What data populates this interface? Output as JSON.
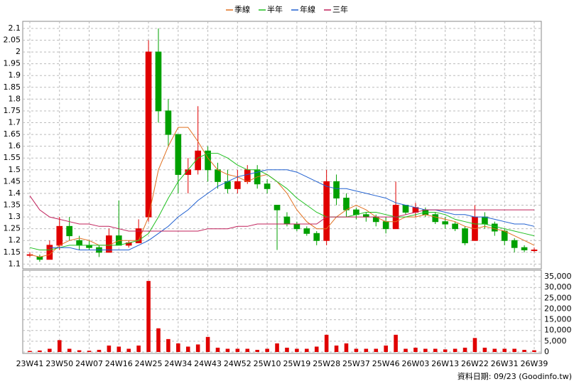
{
  "chart_data": {
    "type": "candlestick",
    "categories": [
      "23W41",
      null,
      null,
      "23W50",
      null,
      null,
      "24W07",
      null,
      null,
      "24W16",
      null,
      null,
      "24W25",
      null,
      null,
      "24W34",
      null,
      null,
      "24W43",
      null,
      null,
      "24W52",
      null,
      null,
      "25W10",
      null,
      null,
      "25W19",
      null,
      null,
      "25W28",
      null,
      null,
      "25W37",
      null,
      null,
      "25W46",
      null,
      null,
      "26W03",
      null,
      null,
      "26W13",
      null,
      null,
      "26W22",
      null,
      null,
      "26W31",
      null,
      null,
      "26W39"
    ],
    "open": [
      1.14,
      1.13,
      1.12,
      1.18,
      1.26,
      1.2,
      1.18,
      1.17,
      1.15,
      1.22,
      1.18,
      1.19,
      1.3,
      2.0,
      1.75,
      1.65,
      1.48,
      1.5,
      1.58,
      1.5,
      1.45,
      1.42,
      1.45,
      1.5,
      1.44,
      1.35,
      1.3,
      1.27,
      1.25,
      1.23,
      1.2,
      1.45,
      1.38,
      1.33,
      1.31,
      1.3,
      1.28,
      1.25,
      1.35,
      1.32,
      1.33,
      1.31,
      1.28,
      1.27,
      1.25,
      1.2,
      1.3,
      1.27,
      1.24,
      1.2,
      1.17,
      1.16
    ],
    "high": [
      1.15,
      1.14,
      1.2,
      1.3,
      1.3,
      1.22,
      1.2,
      1.18,
      1.25,
      1.37,
      1.2,
      1.29,
      2.05,
      2.1,
      1.8,
      1.65,
      1.55,
      1.77,
      1.6,
      1.53,
      1.5,
      1.5,
      1.52,
      1.52,
      1.46,
      1.35,
      1.32,
      1.28,
      1.26,
      1.24,
      1.5,
      1.48,
      1.4,
      1.34,
      1.32,
      1.31,
      1.3,
      1.45,
      1.35,
      1.36,
      1.34,
      1.32,
      1.3,
      1.28,
      1.26,
      1.35,
      1.32,
      1.28,
      1.25,
      1.21,
      1.18,
      1.17
    ],
    "low": [
      1.13,
      1.11,
      1.12,
      1.16,
      1.2,
      1.16,
      1.16,
      1.13,
      1.15,
      1.18,
      1.17,
      1.19,
      1.28,
      1.7,
      1.6,
      1.4,
      1.4,
      1.48,
      1.45,
      1.42,
      1.4,
      1.4,
      1.44,
      1.42,
      1.4,
      1.16,
      1.26,
      1.24,
      1.22,
      1.18,
      1.18,
      1.35,
      1.3,
      1.29,
      1.28,
      1.26,
      1.23,
      1.25,
      1.31,
      1.3,
      1.3,
      1.27,
      1.25,
      1.24,
      1.18,
      1.2,
      1.25,
      1.22,
      1.18,
      1.15,
      1.15,
      1.15
    ],
    "close": [
      1.14,
      1.12,
      1.18,
      1.26,
      1.22,
      1.18,
      1.17,
      1.15,
      1.22,
      1.18,
      1.19,
      1.25,
      2.0,
      1.75,
      1.65,
      1.48,
      1.5,
      1.58,
      1.5,
      1.45,
      1.42,
      1.45,
      1.5,
      1.44,
      1.42,
      1.33,
      1.27,
      1.25,
      1.23,
      1.2,
      1.45,
      1.38,
      1.33,
      1.31,
      1.3,
      1.28,
      1.25,
      1.35,
      1.32,
      1.34,
      1.31,
      1.28,
      1.27,
      1.25,
      1.19,
      1.3,
      1.27,
      1.24,
      1.2,
      1.17,
      1.16,
      1.16
    ],
    "up_color": "#e00000",
    "down_color": "#00a000",
    "series": [
      {
        "name": "季線",
        "color": "#e07020",
        "values": [
          1.14,
          1.13,
          1.14,
          1.18,
          1.2,
          1.21,
          1.2,
          1.18,
          1.18,
          1.2,
          1.2,
          1.2,
          1.3,
          1.5,
          1.6,
          1.68,
          1.68,
          1.62,
          1.55,
          1.5,
          1.48,
          1.47,
          1.45,
          1.47,
          1.48,
          1.45,
          1.4,
          1.33,
          1.28,
          1.25,
          1.25,
          1.3,
          1.33,
          1.35,
          1.33,
          1.3,
          1.28,
          1.28,
          1.3,
          1.3,
          1.31,
          1.3,
          1.29,
          1.28,
          1.26,
          1.25,
          1.26,
          1.25,
          1.24,
          1.22,
          1.2,
          1.18
        ]
      },
      {
        "name": "半年",
        "color": "#20c020",
        "values": [
          1.17,
          1.16,
          1.16,
          1.17,
          1.18,
          1.18,
          1.18,
          1.18,
          1.18,
          1.18,
          1.19,
          1.2,
          1.23,
          1.3,
          1.38,
          1.45,
          1.5,
          1.55,
          1.57,
          1.57,
          1.55,
          1.52,
          1.5,
          1.5,
          1.48,
          1.45,
          1.42,
          1.38,
          1.35,
          1.32,
          1.3,
          1.3,
          1.3,
          1.31,
          1.32,
          1.32,
          1.31,
          1.3,
          1.3,
          1.31,
          1.32,
          1.32,
          1.31,
          1.29,
          1.28,
          1.27,
          1.27,
          1.26,
          1.25,
          1.24,
          1.23,
          1.22
        ]
      },
      {
        "name": "年線",
        "color": "#2060d0",
        "values": [
          null,
          null,
          1.17,
          1.17,
          1.17,
          1.16,
          1.16,
          1.16,
          1.16,
          1.16,
          1.16,
          1.18,
          1.2,
          1.23,
          1.26,
          1.3,
          1.33,
          1.37,
          1.4,
          1.43,
          1.45,
          1.47,
          1.48,
          1.49,
          1.5,
          1.5,
          1.5,
          1.49,
          1.47,
          1.45,
          1.43,
          1.42,
          1.42,
          1.41,
          1.4,
          1.39,
          1.38,
          1.36,
          1.35,
          1.34,
          1.33,
          1.33,
          1.32,
          1.31,
          1.31,
          1.3,
          1.3,
          1.29,
          1.28,
          1.27,
          1.27,
          1.26
        ]
      },
      {
        "name": "三年",
        "color": "#c0205a",
        "values": [
          1.39,
          1.33,
          1.3,
          1.29,
          1.28,
          1.27,
          1.27,
          1.26,
          1.26,
          1.25,
          1.24,
          1.24,
          1.24,
          1.24,
          1.24,
          1.24,
          1.24,
          1.24,
          1.25,
          1.25,
          1.25,
          1.26,
          1.26,
          1.27,
          1.27,
          1.27,
          1.27,
          1.27,
          1.27,
          1.27,
          1.3,
          1.3,
          1.3,
          1.3,
          1.3,
          1.3,
          1.3,
          1.3,
          1.31,
          1.32,
          1.33,
          1.33,
          1.33,
          1.33,
          1.33,
          1.33,
          1.33,
          1.33,
          1.33,
          1.33,
          1.33,
          1.33
        ]
      }
    ],
    "volume": {
      "color": "#e00000",
      "values": [
        500,
        700,
        1500,
        5500,
        1500,
        800,
        600,
        1000,
        3000,
        2500,
        1500,
        3000,
        33000,
        11000,
        6000,
        4000,
        2500,
        3500,
        7000,
        2000,
        1500,
        1500,
        1500,
        1000,
        1500,
        4000,
        2000,
        1500,
        1500,
        2500,
        8000,
        3000,
        4000,
        1500,
        1500,
        1500,
        3000,
        8000,
        1500,
        2000,
        1500,
        1500,
        1200,
        1500,
        2000,
        6500,
        2000,
        1500,
        1500,
        1500,
        1000,
        800
      ]
    },
    "ylim": [
      1.08,
      2.13
    ],
    "yticks": [
      1.1,
      1.15,
      1.2,
      1.25,
      1.3,
      1.35,
      1.4,
      1.45,
      1.5,
      1.55,
      1.6,
      1.65,
      1.7,
      1.75,
      1.8,
      1.85,
      1.9,
      1.95,
      2,
      2.05,
      2.1
    ],
    "y2lim": [
      0,
      38000
    ],
    "y2ticks": [
      0,
      {
        "value": 5000,
        "label": "5,000"
      },
      {
        "value": 10000,
        "label": "10,000"
      },
      {
        "value": 15000,
        "label": "15,000"
      },
      {
        "value": 20000,
        "label": "20,000"
      },
      {
        "value": 25000,
        "label": "25,000"
      },
      {
        "value": 30000,
        "label": "30,000"
      },
      {
        "value": 35000,
        "label": "35,000"
      }
    ],
    "grid": true,
    "source_note": "資料日期: 09/23 (Goodinfo.tw)"
  }
}
